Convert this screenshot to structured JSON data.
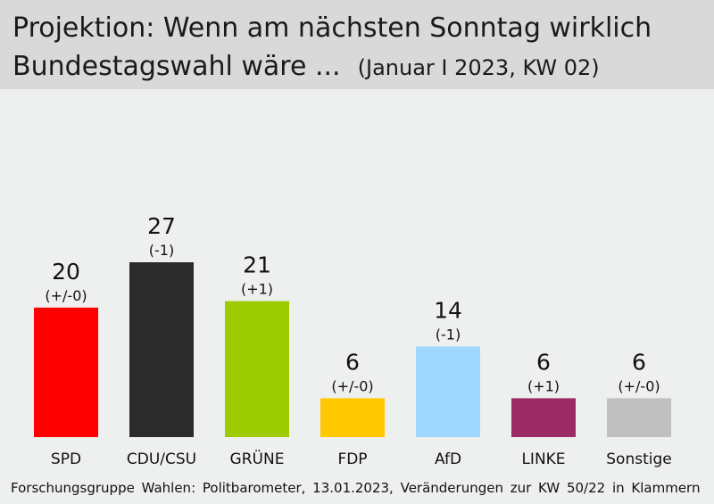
{
  "header": {
    "title_line1": "Projektion: Wenn am nächsten Sonntag wirklich",
    "title_line2": "Bundestagswahl wäre ...",
    "subtitle": "(Januar I 2023, KW 02)"
  },
  "chart_data": {
    "type": "bar",
    "title": "Projektion: Wenn am nächsten Sonntag wirklich Bundestagswahl wäre ...",
    "subtitle": "(Januar I 2023, KW 02)",
    "categories": [
      "SPD",
      "CDU/CSU",
      "GRÜNE",
      "FDP",
      "AfD",
      "LINKE",
      "Sonstige"
    ],
    "values": [
      20,
      27,
      21,
      6,
      14,
      6,
      6
    ],
    "changes": [
      "(+/-0)",
      "(-1)",
      "(+1)",
      "(+/-0)",
      "(-1)",
      "(+1)",
      "(+/-0)"
    ],
    "colors": [
      "#ff0000",
      "#2b2b2b",
      "#9bcb00",
      "#ffc800",
      "#9ed8ff",
      "#9b2b63",
      "#c0c0c0"
    ],
    "ylim": [
      0,
      27
    ],
    "grid": false,
    "legend": "none"
  },
  "footer": {
    "source": "Forschungsgruppe Wahlen: Politbarometer, 13.01.2023, Veränderungen zur KW 50/22 in Klammern"
  }
}
